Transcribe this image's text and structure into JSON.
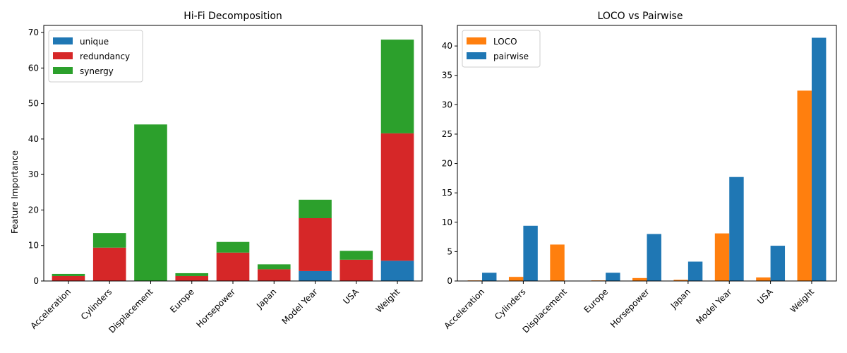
{
  "chart_data": [
    {
      "type": "bar",
      "stacked": true,
      "title": "Hi-Fi Decomposition",
      "xlabel": "",
      "ylabel": "Feature Importance",
      "ylim": [
        0,
        72
      ],
      "yticks": [
        "0",
        "10",
        "20",
        "30",
        "40",
        "50",
        "60",
        "70"
      ],
      "categories": [
        "Acceleration",
        "Cylinders",
        "Displacement",
        "Europe",
        "Horsepower",
        "Japan",
        "Model Year",
        "USA",
        "Weight"
      ],
      "series": [
        {
          "name": "unique",
          "color": "#1f77b4",
          "values": [
            0,
            0,
            0,
            0,
            0,
            0,
            2.8,
            0,
            5.7
          ]
        },
        {
          "name": "redundancy",
          "color": "#d62728",
          "values": [
            1.4,
            9.4,
            0,
            1.4,
            8.0,
            3.3,
            14.9,
            6.0,
            35.9
          ]
        },
        {
          "name": "synergy",
          "color": "#2ca02c",
          "values": [
            0.6,
            4.1,
            44.1,
            0.8,
            3.0,
            1.4,
            5.2,
            2.5,
            26.4
          ]
        }
      ],
      "legend": "top-left",
      "grid": false
    },
    {
      "type": "bar",
      "grouped": true,
      "title": "LOCO vs Pairwise",
      "xlabel": "",
      "ylabel": "",
      "ylim": [
        0,
        43.5
      ],
      "yticks": [
        "0",
        "5",
        "10",
        "15",
        "20",
        "25",
        "30",
        "35",
        "40"
      ],
      "categories": [
        "Acceleration",
        "Cylinders",
        "Displacement",
        "Europe",
        "Horsepower",
        "Japan",
        "Model Year",
        "USA",
        "Weight"
      ],
      "series": [
        {
          "name": "LOCO",
          "color": "#ff7f0e",
          "values": [
            0.1,
            0.7,
            6.2,
            0.1,
            0.5,
            0.2,
            8.1,
            0.6,
            32.4
          ]
        },
        {
          "name": "pairwise",
          "color": "#1f77b4",
          "values": [
            1.4,
            9.4,
            0,
            1.4,
            8.0,
            3.3,
            17.7,
            6.0,
            41.4
          ]
        }
      ],
      "legend": "top-left",
      "grid": false
    }
  ]
}
